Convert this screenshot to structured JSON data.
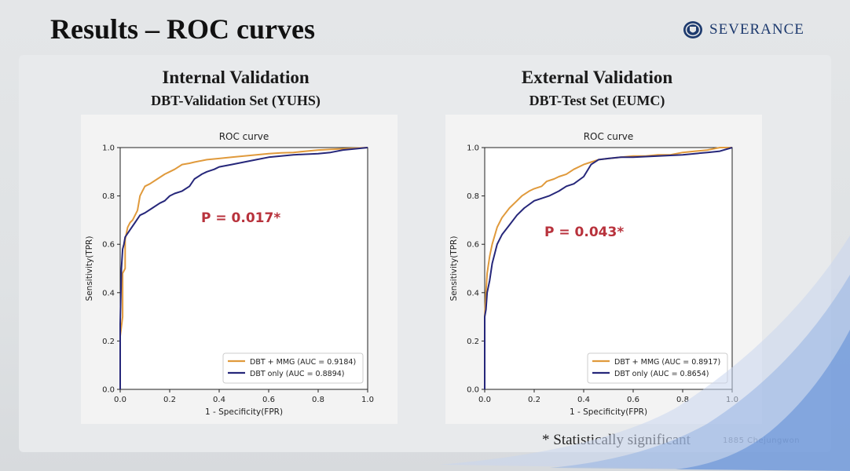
{
  "slide": {
    "title": "Results – ROC curves",
    "logo_text": "SEVERANCE",
    "footnote": "* Statistically significant",
    "footer_brand": "1885 Chejungwon"
  },
  "panels": [
    {
      "heading": "Internal Validation",
      "subheading": "DBT-Validation Set (YUHS)",
      "p_value": "P = 0.017*"
    },
    {
      "heading": "External Validation",
      "subheading": "DBT-Test Set (EUMC)",
      "p_value": "P = 0.043*"
    }
  ],
  "colors": {
    "mmg_series": "#e09a3c",
    "dbt_series": "#26277a",
    "p_value": "#b8323c",
    "logo": "#1d3a6e"
  },
  "chart_data": [
    {
      "type": "line",
      "title": "ROC curve",
      "xlabel": "1 - Specificity(FPR)",
      "ylabel": "Sensitivity(TPR)",
      "xlim": [
        0,
        1
      ],
      "ylim": [
        0,
        1
      ],
      "xticks": [
        "0.0",
        "0.2",
        "0.4",
        "0.6",
        "0.8",
        "1.0"
      ],
      "yticks": [
        "0.0",
        "0.2",
        "0.4",
        "0.6",
        "0.8",
        "1.0"
      ],
      "grid": false,
      "legend_position": "lower-right",
      "series": [
        {
          "name": "DBT + MMG (AUC = 0.9184)",
          "color": "#e09a3c",
          "x": [
            0,
            0.0,
            0.01,
            0.01,
            0.02,
            0.02,
            0.03,
            0.04,
            0.05,
            0.07,
            0.08,
            0.09,
            0.1,
            0.12,
            0.15,
            0.18,
            0.2,
            0.22,
            0.25,
            0.28,
            0.3,
            0.35,
            0.4,
            0.45,
            0.5,
            0.55,
            0.6,
            0.65,
            0.7,
            0.75,
            0.8,
            0.9,
            1.0
          ],
          "y": [
            0,
            0.22,
            0.3,
            0.48,
            0.5,
            0.62,
            0.67,
            0.69,
            0.7,
            0.74,
            0.8,
            0.82,
            0.84,
            0.85,
            0.87,
            0.89,
            0.9,
            0.91,
            0.93,
            0.935,
            0.94,
            0.95,
            0.955,
            0.96,
            0.965,
            0.97,
            0.975,
            0.978,
            0.98,
            0.985,
            0.99,
            0.995,
            1.0
          ]
        },
        {
          "name": "DBT only (AUC = 0.8894)",
          "color": "#26277a",
          "x": [
            0,
            0.0,
            0.005,
            0.01,
            0.015,
            0.02,
            0.04,
            0.06,
            0.08,
            0.1,
            0.13,
            0.16,
            0.18,
            0.2,
            0.22,
            0.25,
            0.28,
            0.3,
            0.33,
            0.35,
            0.38,
            0.4,
            0.45,
            0.5,
            0.55,
            0.6,
            0.7,
            0.8,
            0.85,
            0.9,
            1.0
          ],
          "y": [
            0,
            0.27,
            0.5,
            0.58,
            0.6,
            0.63,
            0.66,
            0.69,
            0.72,
            0.73,
            0.75,
            0.77,
            0.78,
            0.8,
            0.81,
            0.82,
            0.84,
            0.87,
            0.89,
            0.9,
            0.91,
            0.92,
            0.93,
            0.94,
            0.95,
            0.96,
            0.97,
            0.975,
            0.98,
            0.99,
            1.0
          ]
        }
      ]
    },
    {
      "type": "line",
      "title": "ROC curve",
      "xlabel": "1 - Specificity(FPR)",
      "ylabel": "Sensitivity(TPR)",
      "xlim": [
        0,
        1
      ],
      "ylim": [
        0,
        1
      ],
      "xticks": [
        "0.0",
        "0.2",
        "0.4",
        "0.6",
        "0.8",
        "1.0"
      ],
      "yticks": [
        "0.0",
        "0.2",
        "0.4",
        "0.6",
        "0.8",
        "1.0"
      ],
      "grid": false,
      "legend_position": "lower-right",
      "series": [
        {
          "name": "DBT + MMG (AUC = 0.8917)",
          "color": "#e09a3c",
          "x": [
            0,
            0.0,
            0.005,
            0.01,
            0.02,
            0.03,
            0.05,
            0.07,
            0.1,
            0.13,
            0.15,
            0.18,
            0.2,
            0.23,
            0.25,
            0.28,
            0.3,
            0.33,
            0.36,
            0.4,
            0.43,
            0.46,
            0.5,
            0.55,
            0.6,
            0.65,
            0.7,
            0.75,
            0.8,
            0.85,
            0.9,
            0.95,
            1.0
          ],
          "y": [
            0,
            0.3,
            0.4,
            0.48,
            0.55,
            0.6,
            0.67,
            0.71,
            0.75,
            0.78,
            0.8,
            0.82,
            0.83,
            0.84,
            0.86,
            0.87,
            0.88,
            0.89,
            0.91,
            0.93,
            0.94,
            0.95,
            0.955,
            0.96,
            0.965,
            0.965,
            0.97,
            0.97,
            0.98,
            0.985,
            0.99,
            1.0,
            1.0
          ]
        },
        {
          "name": "DBT only (AUC = 0.8654)",
          "color": "#26277a",
          "x": [
            0,
            0.0,
            0.005,
            0.01,
            0.02,
            0.03,
            0.05,
            0.07,
            0.1,
            0.13,
            0.16,
            0.2,
            0.23,
            0.26,
            0.3,
            0.33,
            0.36,
            0.4,
            0.43,
            0.46,
            0.5,
            0.55,
            0.6,
            0.7,
            0.8,
            0.85,
            0.9,
            0.95,
            1.0
          ],
          "y": [
            0,
            0.3,
            0.33,
            0.4,
            0.45,
            0.52,
            0.6,
            0.64,
            0.68,
            0.72,
            0.75,
            0.78,
            0.79,
            0.8,
            0.82,
            0.84,
            0.85,
            0.88,
            0.93,
            0.95,
            0.955,
            0.96,
            0.96,
            0.965,
            0.97,
            0.975,
            0.98,
            0.985,
            1.0
          ]
        }
      ]
    }
  ]
}
